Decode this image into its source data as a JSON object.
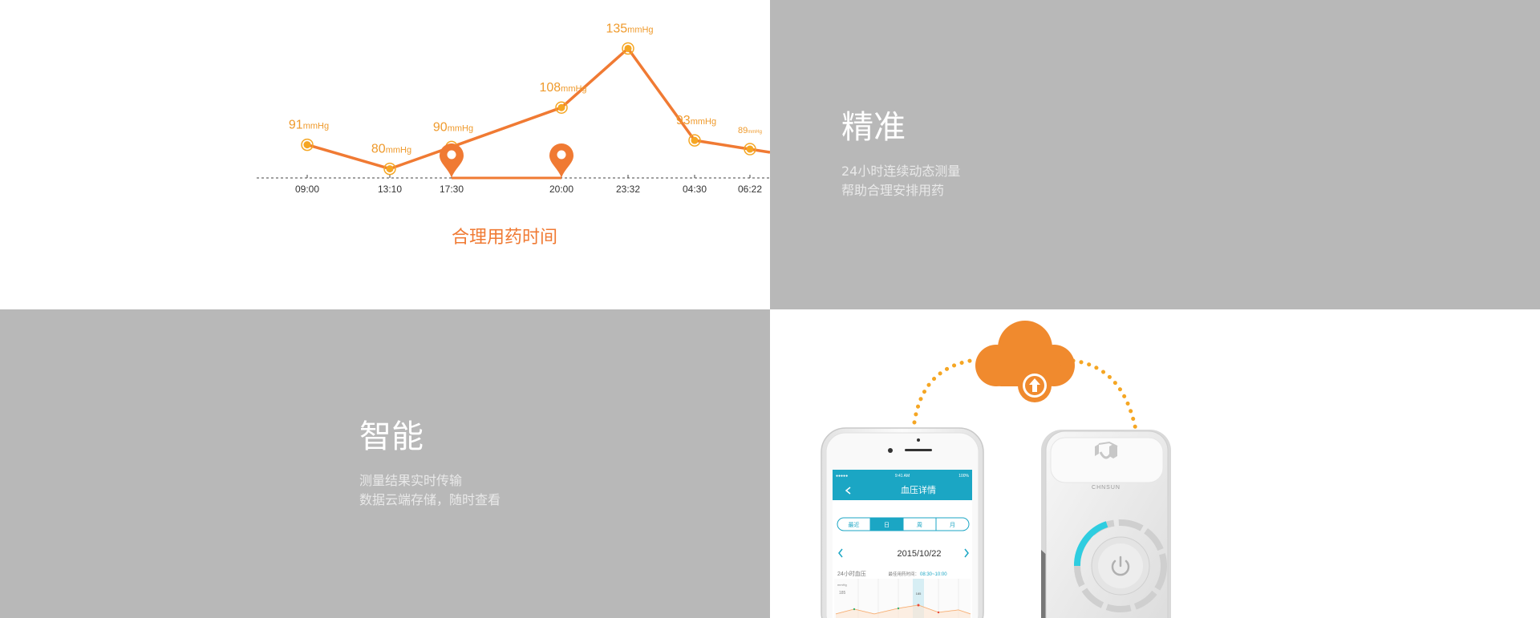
{
  "panel_top_left": {
    "caption": "合理用药时间",
    "chart_data": {
      "type": "line",
      "x": [
        "09:00",
        "13:10",
        "17:30",
        "20:00",
        "23:32",
        "04:30",
        "06:22"
      ],
      "values": [
        91,
        80,
        90,
        108,
        135,
        93,
        89
      ],
      "unit": "mmHg",
      "medication_markers": [
        "17:30",
        "20:00"
      ],
      "colors": {
        "line": "#f07a33",
        "point": "#f5a623",
        "label": "#ef9a2c"
      }
    }
  },
  "panel_top_right": {
    "title": "精准",
    "lines": [
      "24小时连续动态测量",
      "帮助合理安排用药"
    ]
  },
  "panel_bottom_left": {
    "title": "智能",
    "lines": [
      "测量结果实时传输",
      "数据云端存储，随时查看"
    ]
  },
  "panel_bottom_right": {
    "device_brand": "CHNSUN",
    "phone": {
      "carrier": "●●●●●",
      "time": "9:41 AM",
      "battery": "100%",
      "screen_title": "血压详情",
      "tabs": [
        "最近",
        "日",
        "周",
        "月"
      ],
      "active_tab_index": 1,
      "date": "2015/10/22",
      "section_title": "24小时血压",
      "best_time_label": "最佳用药时间：",
      "best_time_value": "08:30~10:00",
      "mini_axis_unit": "mmHg",
      "mini_axis_value": "185",
      "mini_marker_value": "185"
    },
    "colors": {
      "cloud": "#f08a2e",
      "dots": "#f5a623",
      "app_header": "#1ba6c4",
      "power_ring": "#2ecde0"
    }
  }
}
